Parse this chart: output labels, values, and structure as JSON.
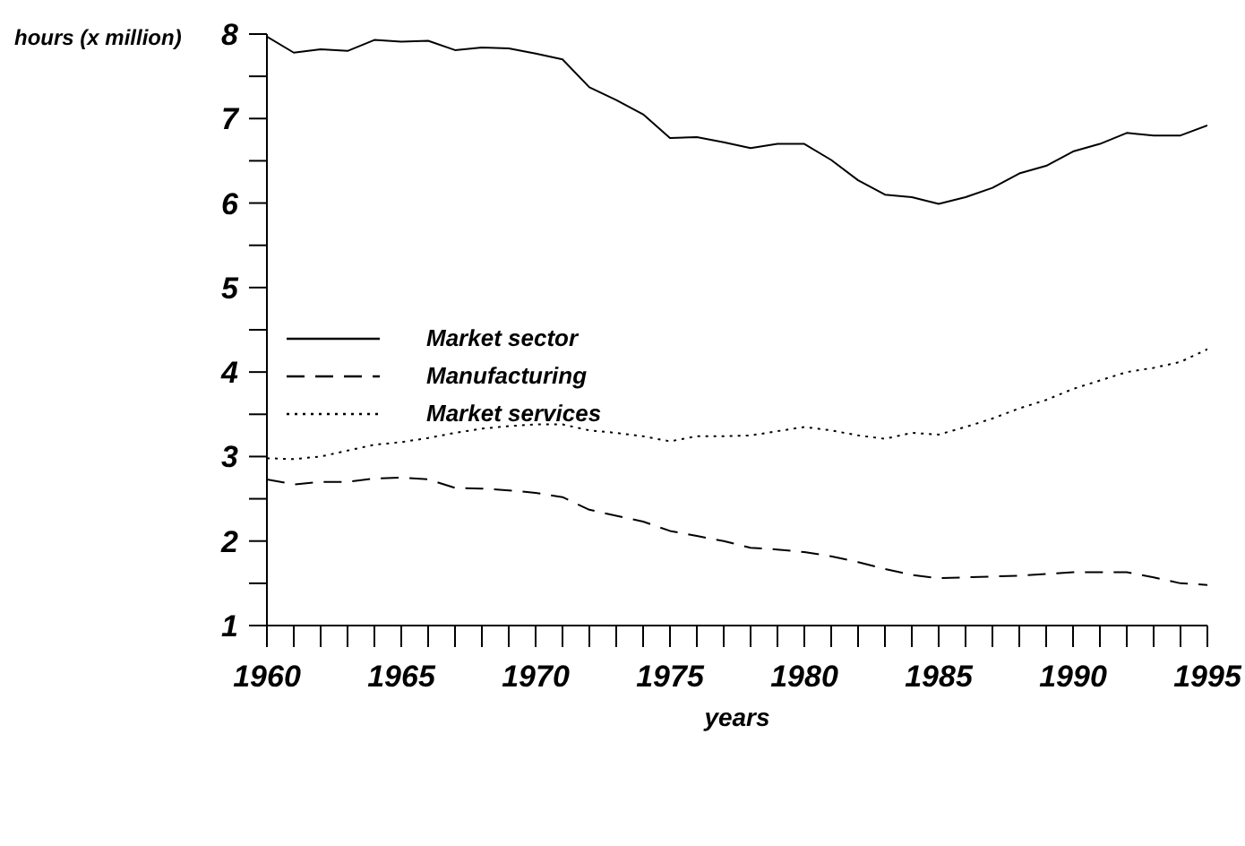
{
  "chart_data": {
    "type": "line",
    "xlabel": "years",
    "ylabel": "hours (x million)",
    "x": [
      1960,
      1961,
      1962,
      1963,
      1964,
      1965,
      1966,
      1967,
      1968,
      1969,
      1970,
      1971,
      1972,
      1973,
      1974,
      1975,
      1976,
      1977,
      1978,
      1979,
      1980,
      1981,
      1982,
      1983,
      1984,
      1985,
      1986,
      1987,
      1988,
      1989,
      1990,
      1991,
      1992,
      1993,
      1994,
      1995
    ],
    "series": [
      {
        "name": "Market sector",
        "color": "#000000",
        "line_style": "solid",
        "values": [
          7.97,
          7.78,
          7.82,
          7.8,
          7.93,
          7.91,
          7.92,
          7.81,
          7.84,
          7.83,
          7.77,
          7.7,
          7.37,
          7.22,
          7.05,
          6.77,
          6.78,
          6.72,
          6.65,
          6.7,
          6.7,
          6.51,
          6.27,
          6.1,
          6.07,
          5.99,
          6.07,
          6.18,
          6.35,
          6.44,
          6.61,
          6.7,
          6.83,
          6.8,
          6.8,
          6.92
        ]
      },
      {
        "name": "Manufacturing",
        "color": "#000000",
        "line_style": "dashed",
        "values": [
          2.73,
          2.67,
          2.7,
          2.7,
          2.74,
          2.75,
          2.73,
          2.63,
          2.62,
          2.6,
          2.57,
          2.52,
          2.37,
          2.3,
          2.23,
          2.12,
          2.06,
          2.0,
          1.92,
          1.9,
          1.87,
          1.82,
          1.75,
          1.67,
          1.6,
          1.56,
          1.57,
          1.58,
          1.59,
          1.61,
          1.63,
          1.63,
          1.63,
          1.57,
          1.5,
          1.48
        ]
      },
      {
        "name": "Market services",
        "color": "#000000",
        "line_style": "dotted",
        "values": [
          2.98,
          2.97,
          3.0,
          3.07,
          3.14,
          3.17,
          3.22,
          3.28,
          3.33,
          3.36,
          3.38,
          3.38,
          3.31,
          3.28,
          3.24,
          3.18,
          3.24,
          3.24,
          3.25,
          3.3,
          3.35,
          3.31,
          3.25,
          3.21,
          3.28,
          3.26,
          3.35,
          3.45,
          3.57,
          3.67,
          3.8,
          3.9,
          4.0,
          4.05,
          4.12,
          4.27
        ]
      }
    ],
    "xlim": [
      1960,
      1995
    ],
    "xticks": [
      1960,
      {
        "value": 1961,
        "label": null
      },
      {
        "value": 1962,
        "label": null
      },
      {
        "value": 1963,
        "label": null
      },
      {
        "value": 1964,
        "label": null
      },
      1965,
      {
        "value": 1966,
        "label": null
      },
      {
        "value": 1967,
        "label": null
      },
      {
        "value": 1968,
        "label": null
      },
      {
        "value": 1969,
        "label": null
      },
      1970,
      {
        "value": 1971,
        "label": null
      },
      {
        "value": 1972,
        "label": null
      },
      {
        "value": 1973,
        "label": null
      },
      {
        "value": 1974,
        "label": null
      },
      1975,
      {
        "value": 1976,
        "label": null
      },
      {
        "value": 1977,
        "label": null
      },
      {
        "value": 1978,
        "label": null
      },
      {
        "value": 1979,
        "label": null
      },
      1980,
      {
        "value": 1981,
        "label": null
      },
      {
        "value": 1982,
        "label": null
      },
      {
        "value": 1983,
        "label": null
      },
      {
        "value": 1984,
        "label": null
      },
      1985,
      {
        "value": 1986,
        "label": null
      },
      {
        "value": 1987,
        "label": null
      },
      {
        "value": 1988,
        "label": null
      },
      {
        "value": 1989,
        "label": null
      },
      1990,
      {
        "value": 1991,
        "label": null
      },
      {
        "value": 1992,
        "label": null
      },
      {
        "value": 1993,
        "label": null
      },
      {
        "value": 1994,
        "label": null
      },
      1995
    ],
    "ylim": [
      1,
      8
    ],
    "yticks": [
      1,
      {
        "value": 1.5,
        "label": null
      },
      2,
      {
        "value": 2.5,
        "label": null
      },
      3,
      {
        "value": 3.5,
        "label": null
      },
      4,
      {
        "value": 4.5,
        "label": null
      },
      5,
      {
        "value": 5.5,
        "label": null
      },
      6,
      {
        "value": 6.5,
        "label": null
      },
      7,
      {
        "value": 7.5,
        "label": null
      },
      8
    ],
    "grid": false,
    "legend": "left",
    "marker": "none"
  }
}
